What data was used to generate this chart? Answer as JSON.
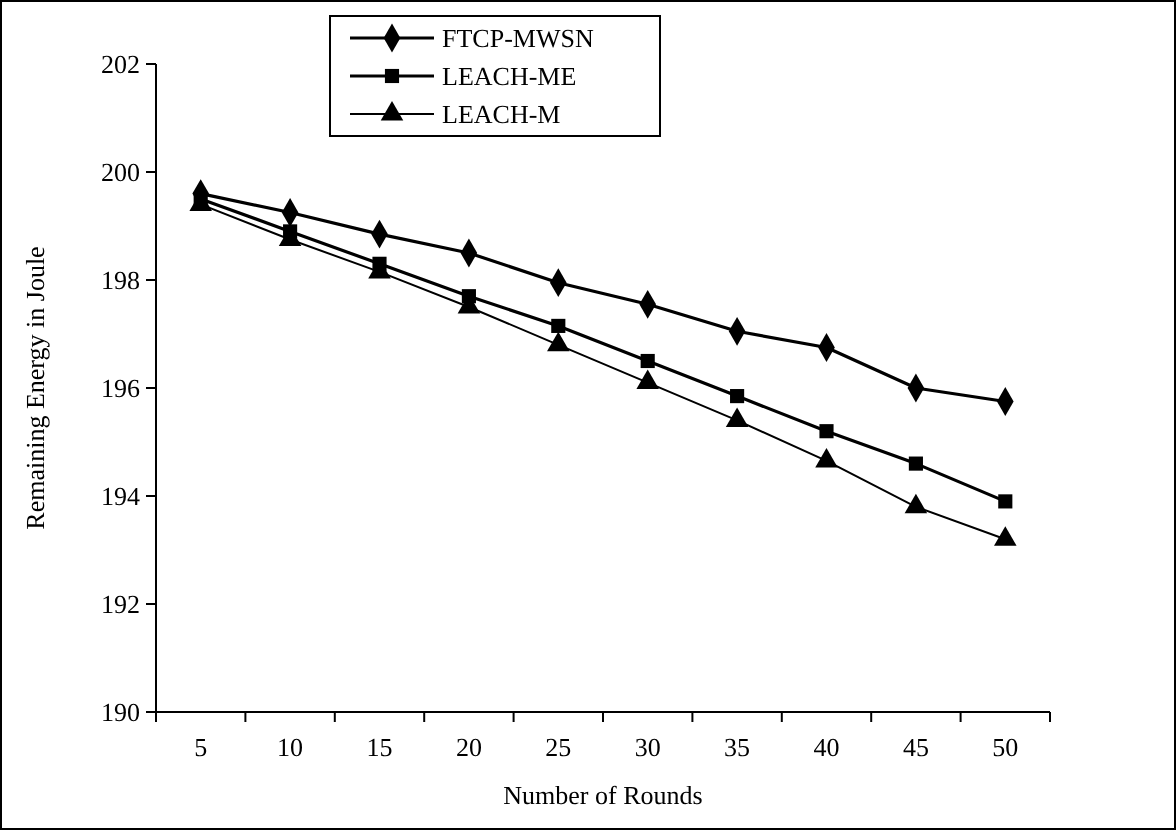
{
  "chart_data": {
    "type": "line",
    "xlabel": "Number of Rounds",
    "ylabel": "Remaining Energy in Joule",
    "categories": [
      "5",
      "10",
      "15",
      "20",
      "25",
      "30",
      "35",
      "40",
      "45",
      "50"
    ],
    "ylim": [
      190,
      202
    ],
    "yticks": [
      190,
      192,
      194,
      196,
      198,
      200,
      202
    ],
    "grid": false,
    "legend": "top",
    "series": [
      {
        "name": "FTCP-MWSN",
        "color": "#000000",
        "marker": "diamond",
        "values": [
          199.6,
          199.25,
          198.85,
          198.5,
          197.95,
          197.55,
          197.05,
          196.75,
          196.0,
          195.75
        ]
      },
      {
        "name": "LEACH-ME",
        "color": "#000000",
        "marker": "square",
        "values": [
          199.5,
          198.9,
          198.3,
          197.7,
          197.15,
          196.5,
          195.85,
          195.2,
          194.6,
          193.9
        ]
      },
      {
        "name": "LEACH-M",
        "color": "#000000",
        "marker": "triangle",
        "values": [
          199.4,
          198.75,
          198.15,
          197.5,
          196.8,
          196.1,
          195.4,
          194.65,
          193.8,
          193.2
        ]
      }
    ]
  }
}
